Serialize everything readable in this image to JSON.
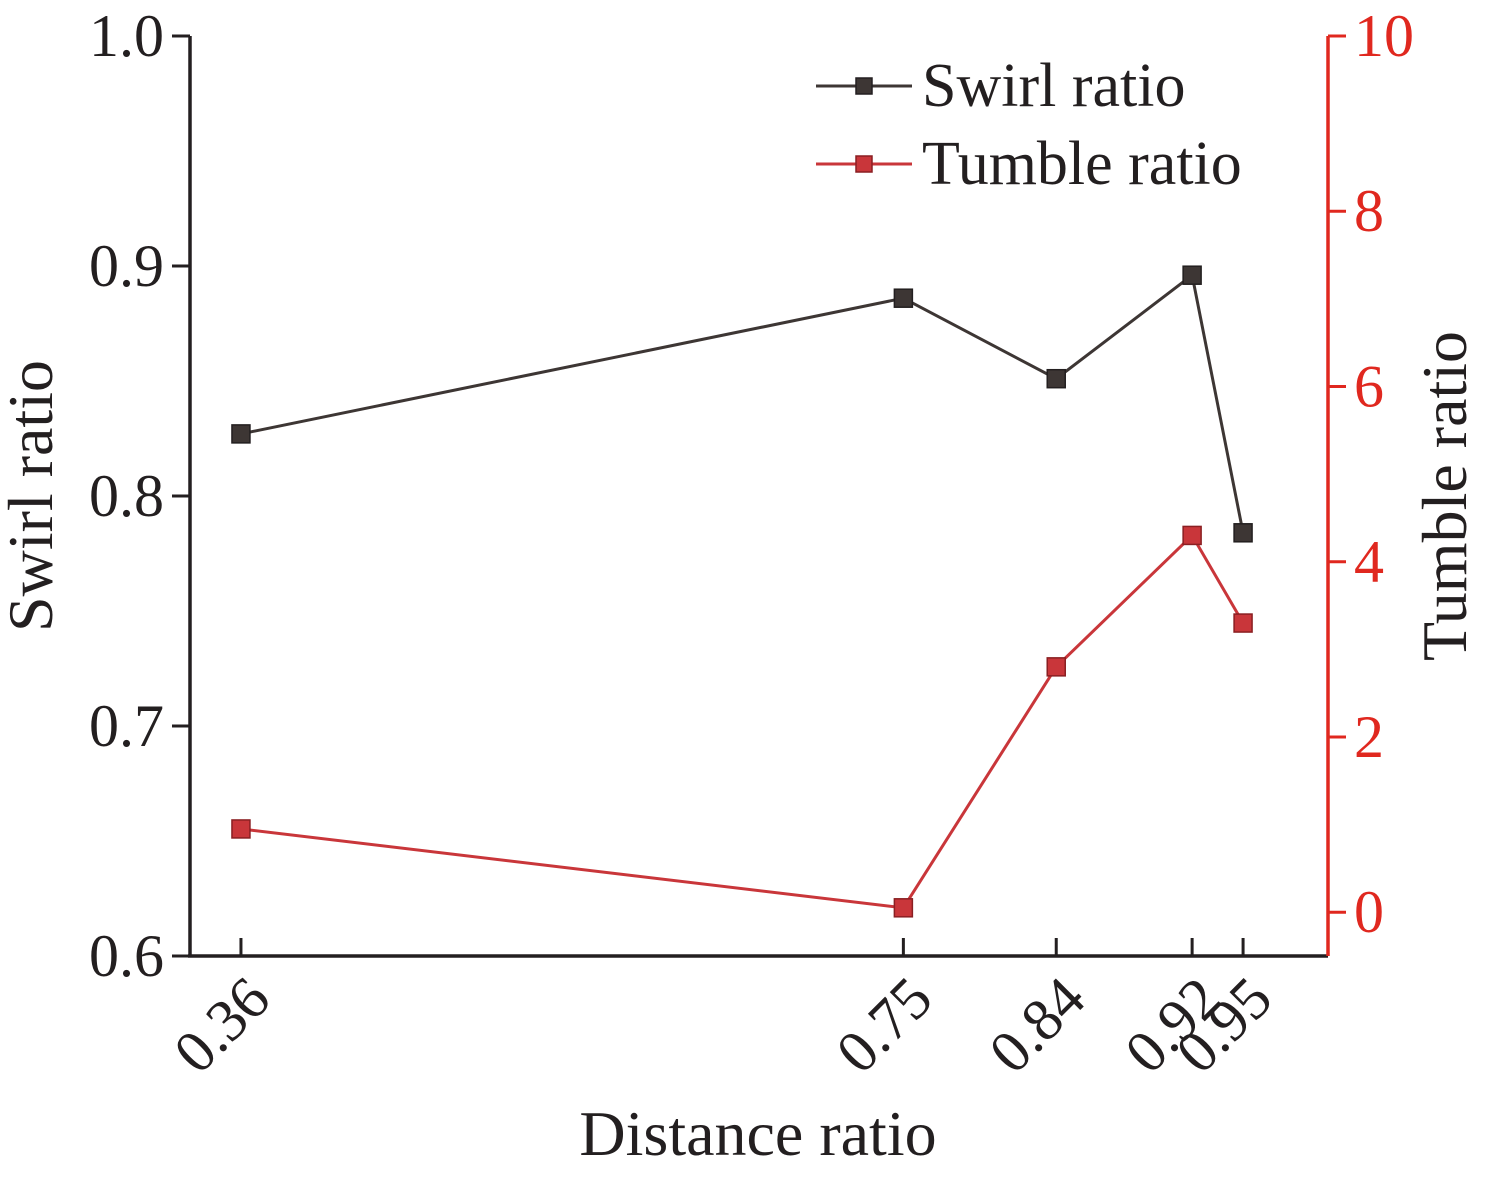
{
  "chart_data": {
    "type": "line",
    "title": "",
    "xlabel": "Distance ratio",
    "ylabel": "Swirl ratio",
    "y2label": "Tumble ratio",
    "categories": [
      "0.36",
      "0.75",
      "0.84",
      "0.92",
      "0.95"
    ],
    "x": [
      0.36,
      0.75,
      0.84,
      0.92,
      0.95
    ],
    "xlim": [
      0.33,
      1.0
    ],
    "ylim": [
      0.6,
      1.0
    ],
    "y2lim": [
      -0.5,
      10
    ],
    "yticks": [
      "0.6",
      "0.7",
      "0.8",
      "0.9",
      "1.0"
    ],
    "y2ticks": [
      "0",
      "2",
      "4",
      "6",
      "8",
      "10"
    ],
    "grid": false,
    "legend_position": "top-right",
    "series": [
      {
        "name": "Swirl ratio",
        "axis": "left",
        "color": "#3d3634",
        "values": [
          0.827,
          0.886,
          0.851,
          0.896,
          0.784
        ]
      },
      {
        "name": "Tumble ratio",
        "axis": "right",
        "color": "#c9363a",
        "values": [
          0.95,
          0.05,
          2.8,
          4.3,
          3.3
        ]
      }
    ]
  }
}
